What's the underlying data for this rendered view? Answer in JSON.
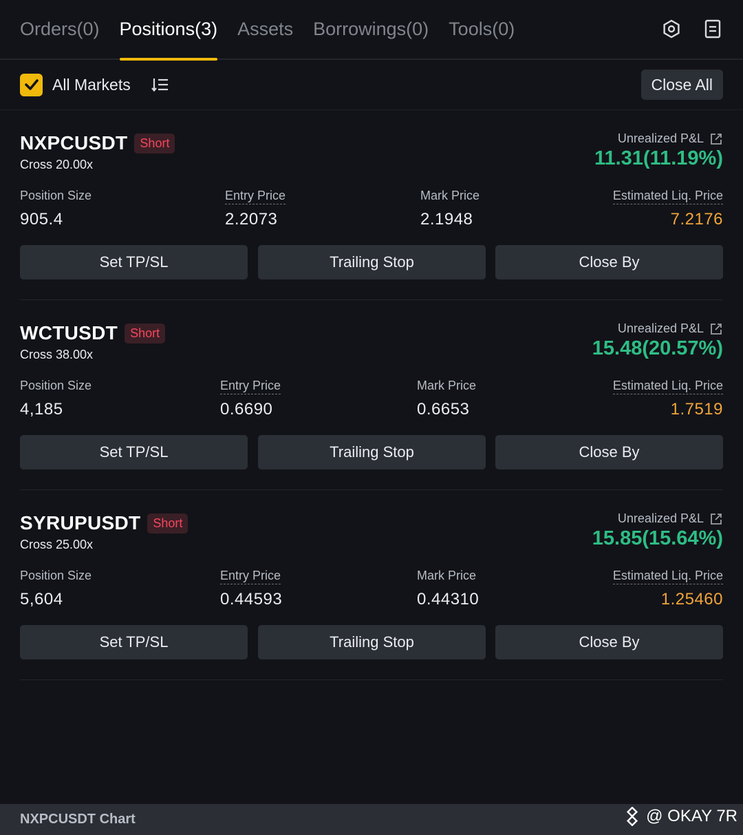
{
  "tabs": [
    {
      "label": "Orders(0)",
      "active": false
    },
    {
      "label": "Positions(3)",
      "active": true
    },
    {
      "label": "Assets",
      "active": false
    },
    {
      "label": "Borrowings(0)",
      "active": false
    },
    {
      "label": "Tools(0)",
      "active": false
    }
  ],
  "top_icons": [
    "settings-icon",
    "document-icon"
  ],
  "filter": {
    "checkbox_checked": true,
    "label": "All Markets",
    "sort_icon": "sort-list-icon",
    "close_all_label": "Close All"
  },
  "labels": {
    "unrealized_pnl": "Unrealized P&L",
    "position_size": "Position Size",
    "entry_price": "Entry Price",
    "mark_price": "Mark Price",
    "est_liq_price": "Estimated Liq. Price"
  },
  "positions": [
    {
      "symbol": "NXPCUSDT",
      "side": "Short",
      "leverage": "Cross 20.00x",
      "pnl": "11.31(11.19%)",
      "position_size": "905.4",
      "entry_price": "2.2073",
      "mark_price": "2.1948",
      "liq_price": "7.2176",
      "buttons": [
        "Set TP/SL",
        "Trailing Stop",
        "Close By"
      ]
    },
    {
      "symbol": "WCTUSDT",
      "side": "Short",
      "leverage": "Cross 38.00x",
      "pnl": "15.48(20.57%)",
      "position_size": "4,185",
      "entry_price": "0.6690",
      "mark_price": "0.6653",
      "liq_price": "1.7519",
      "buttons": [
        "Set TP/SL",
        "Trailing Stop",
        "Close By"
      ]
    },
    {
      "symbol": "SYRUPUSDT",
      "side": "Short",
      "leverage": "Cross 25.00x",
      "pnl": "15.85(15.64%)",
      "position_size": "5,604",
      "entry_price": "0.44593",
      "mark_price": "0.44310",
      "liq_price": "1.25460",
      "buttons": [
        "Set TP/SL",
        "Trailing Stop",
        "Close By"
      ]
    }
  ],
  "bottom_bar": {
    "chart_title": "NXPCUSDT Chart"
  },
  "watermark": {
    "text": "@ OKAY 7R"
  },
  "colors": {
    "accent": "#f0b90b",
    "profit": "#2ebd85",
    "short": "#f6465d",
    "liq": "#f0a43a",
    "background": "#121318"
  }
}
